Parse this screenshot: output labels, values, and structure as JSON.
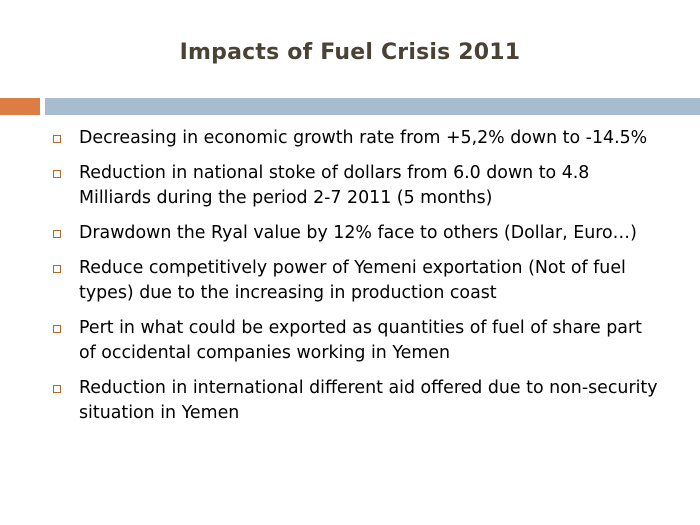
{
  "slide": {
    "title": "Impacts of Fuel Crisis 2011",
    "colors": {
      "title_text": "#4a4235",
      "accent_bar_left": "#dc7d44",
      "accent_bar_right": "#a8bccf",
      "bullet_square": "#b26a2c"
    },
    "bullet_icon": "hollow-square-bullet-icon",
    "bullets": [
      "Decreasing in economic growth rate from +5,2% down to -14.5%",
      "Reduction in national stoke of dollars from 6.0 down to 4.8 Milliards during the period 2-7 2011 (5 months)",
      "Drawdown the Ryal value by 12% face to others (Dollar, Euro…)",
      "Reduce competitively power of Yemeni exportation (Not of fuel types) due to the increasing in production coast",
      "Pert in what could be exported as quantities of fuel of share part of occidental companies working in Yemen",
      "Reduction in international different aid offered due to non-security situation in Yemen"
    ]
  }
}
